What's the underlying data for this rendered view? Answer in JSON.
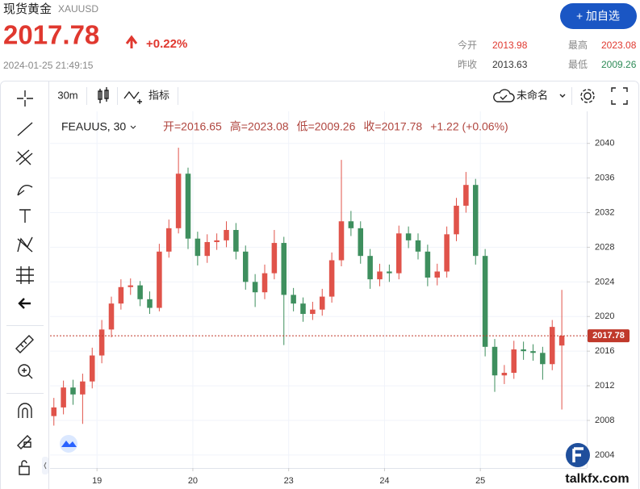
{
  "header": {
    "title": "现货黄金",
    "symbol": "XAUUSD",
    "price": "2017.78",
    "change": "+0.22%",
    "datetime": "2024-01-25 21:49:15",
    "button": "+ 加自选",
    "stats": [
      {
        "label": "今开",
        "value": "2013.98"
      },
      {
        "label": "最高",
        "value": "2023.08"
      },
      {
        "label": "昨收",
        "value": "2013.63"
      },
      {
        "label": "最低",
        "value": "2009.26"
      }
    ]
  },
  "toolbar": {
    "interval": "30m",
    "indicators": "指标",
    "layout": "未命名"
  },
  "chart_data": {
    "type": "candlestick",
    "symbol": "FEAUUS, 30",
    "legend": [
      "开=2016.65",
      "高=2023.08",
      "低=2009.26",
      "收=2017.78",
      "+1.22 (+0.06%)"
    ],
    "x": [
      0.55,
      0.65,
      0.75,
      0.85,
      0.95,
      1.05,
      1.15,
      1.25,
      1.35,
      1.45,
      1.55,
      1.65,
      1.75,
      1.85,
      1.95,
      2.05,
      2.15,
      2.25,
      2.35,
      2.45,
      2.55,
      2.65,
      2.75,
      2.85,
      2.95,
      3.05,
      3.15,
      3.25,
      3.35,
      3.45,
      3.55,
      3.65,
      3.75,
      3.85,
      3.95,
      4.05,
      4.15,
      4.25,
      4.35,
      4.45,
      4.55,
      4.65,
      4.75,
      4.85,
      4.95,
      5.05,
      5.15,
      5.25,
      5.35,
      5.45,
      5.55,
      5.65,
      5.75,
      5.85
    ],
    "open": [
      2008.5,
      2009.5,
      2011.8,
      2011,
      2012.5,
      2015.5,
      2018.5,
      2021.5,
      2023.4,
      2023.6,
      2022,
      2021,
      2027.5,
      2030.2,
      2036.5,
      2029,
      2027,
      2028.6,
      2028.8,
      2030,
      2027.5,
      2024,
      2022.8,
      2025,
      2028.5,
      2022.5,
      2021.5,
      2020.3,
      2020.8,
      2022.3,
      2026.5,
      2031,
      2030.2,
      2027,
      2024.3,
      2025.2,
      2025,
      2029.6,
      2028.8,
      2027.5,
      2024.5,
      2025.2,
      2029.5,
      2032.8,
      2035.2,
      2027,
      2016.5,
      2013.2,
      2013.5,
      2016.2,
      2016,
      2015.8,
      2014.5,
      2016.65
    ],
    "high": [
      2010.6,
      2012.6,
      2012.7,
      2013.4,
      2016.4,
      2019.6,
      2022.3,
      2024.3,
      2024.4,
      2024.1,
      2022.9,
      2028.4,
      2031.2,
      2039.5,
      2037.2,
      2029.8,
      2029.5,
      2029.6,
      2031,
      2030.8,
      2028.2,
      2024.9,
      2026,
      2030,
      2029.2,
      2023.3,
      2022.2,
      2021.7,
      2023.2,
      2027.4,
      2038.1,
      2032.2,
      2031,
      2027.8,
      2026.1,
      2026,
      2030.5,
      2030.4,
      2029.6,
      2028.3,
      2026.1,
      2030.4,
      2033.7,
      2036.7,
      2035.9,
      2027.8,
      2017.4,
      2014.4,
      2017.2,
      2017.1,
      2016.8,
      2016.5,
      2019.6,
      2023.08
    ],
    "low": [
      2007.4,
      2008.7,
      2009.8,
      2007.6,
      2011.7,
      2014.6,
      2017.6,
      2020.8,
      2022.5,
      2021.2,
      2020.3,
      2020.6,
      2026.8,
      2029.6,
      2027.8,
      2025.9,
      2026.2,
      2027.7,
      2028,
      2026.6,
      2023.1,
      2021.1,
      2022,
      2024.3,
      2016.7,
      2020.6,
      2019.4,
      2019.6,
      2020.1,
      2021.6,
      2025.8,
      2029.3,
      2026.1,
      2023.2,
      2023.5,
      2024,
      2024.3,
      2027.9,
      2026.6,
      2023.5,
      2023.6,
      2024.5,
      2028.7,
      2032,
      2026,
      2015.4,
      2011.3,
      2012.2,
      2012.8,
      2015,
      2014.9,
      2012.7,
      2013.8,
      2009.26
    ],
    "close": [
      2009.5,
      2011.8,
      2011,
      2012.5,
      2015.5,
      2018.5,
      2021.5,
      2023.4,
      2023.6,
      2022,
      2021,
      2027.5,
      2030.2,
      2036.5,
      2029,
      2027,
      2028.6,
      2028.8,
      2030,
      2027.5,
      2024,
      2022.8,
      2025,
      2028.5,
      2022.5,
      2021.5,
      2020.3,
      2020.8,
      2022.3,
      2026.5,
      2031,
      2030.2,
      2027,
      2024.3,
      2025.2,
      2025,
      2029.6,
      2028.8,
      2027.5,
      2024.5,
      2025.2,
      2029.5,
      2032.8,
      2035.2,
      2027,
      2016.5,
      2013.2,
      2013.5,
      2016.2,
      2016,
      2015.8,
      2014.5,
      2018.8,
      2017.78
    ],
    "up_color": "#e0534a",
    "down_color": "#3e8f5e",
    "last_price_color": "#c0392b",
    "ylim": [
      2002.5,
      2043.7
    ],
    "yticks": [
      2004,
      2008,
      2012,
      2016,
      2020,
      2024,
      2028,
      2032,
      2036,
      2040
    ],
    "xlim": [
      0.51,
      6.11
    ],
    "xticks": [
      {
        "value": 1,
        "label": "19"
      },
      {
        "value": 2,
        "label": "20"
      },
      {
        "value": 3,
        "label": "23"
      },
      {
        "value": 4,
        "label": "24"
      },
      {
        "value": 5,
        "label": "25"
      }
    ],
    "grid": true
  },
  "watermark": "talkfx.com"
}
